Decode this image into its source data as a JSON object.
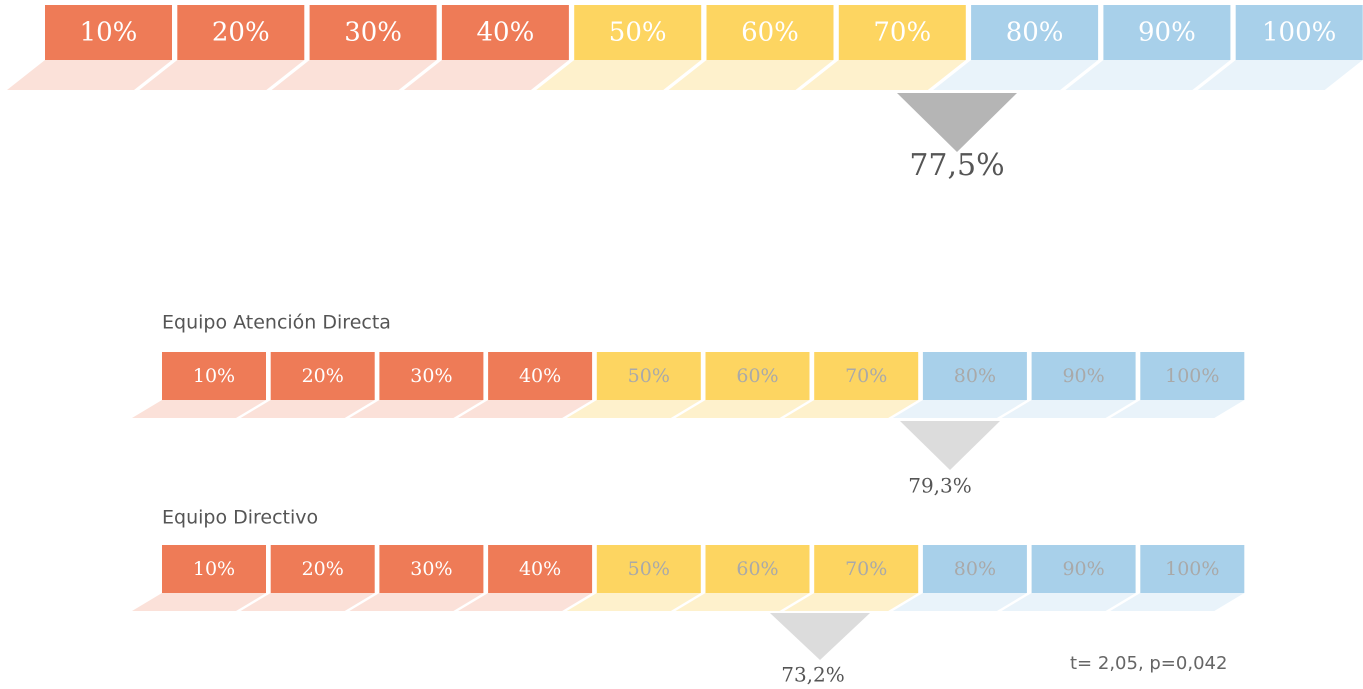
{
  "gauges": [
    {
      "segments": [
        "10%",
        "20%",
        "30%",
        "40%",
        "50%",
        "60%",
        "70%",
        "80%",
        "90%",
        "100%"
      ],
      "value_label": "77,5%"
    },
    {
      "title": "Equipo Atención Directa",
      "segments": [
        "10%",
        "20%",
        "30%",
        "40%",
        "50%",
        "60%",
        "70%",
        "80%",
        "90%",
        "100%"
      ],
      "value_label": "79,3%"
    },
    {
      "title": "Equipo Directivo",
      "segments": [
        "10%",
        "20%",
        "30%",
        "40%",
        "50%",
        "60%",
        "70%",
        "80%",
        "90%",
        "100%"
      ],
      "value_label": "73,2%"
    }
  ],
  "note": "t= 2,05, p=0,042"
}
